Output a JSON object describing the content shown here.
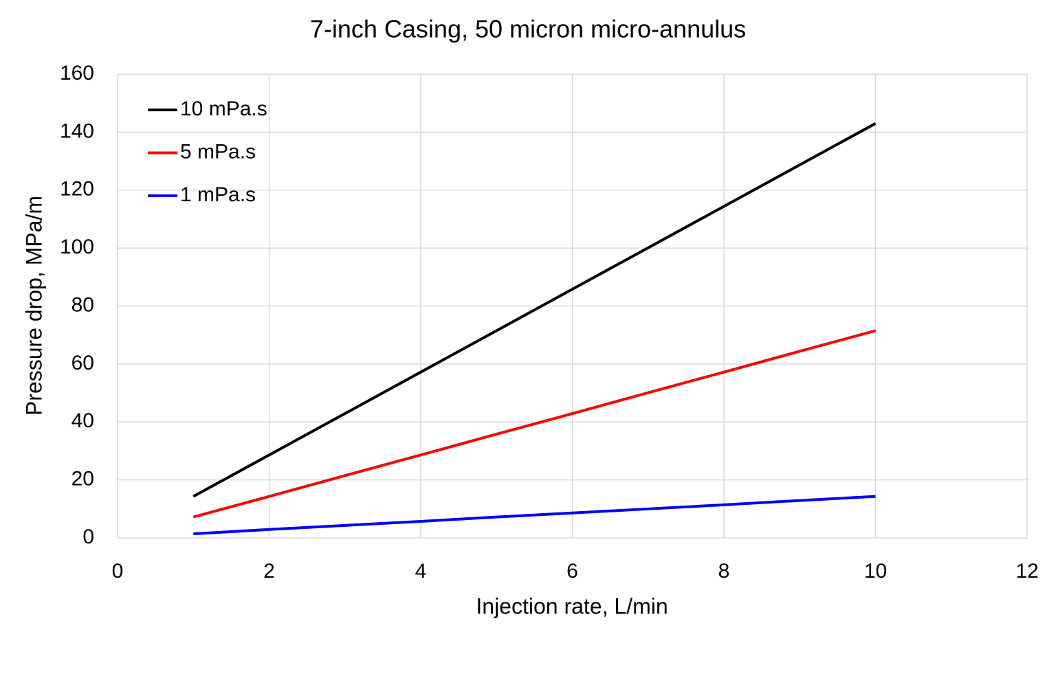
{
  "chart_data": {
    "type": "line",
    "title": "7-inch Casing, 50 micron micro-annulus",
    "x_label": "Injection rate, L/min",
    "y_label": "Pressure drop, MPa/m",
    "x": [
      1,
      2,
      3,
      4,
      5,
      6,
      7,
      8,
      9,
      10
    ],
    "series": [
      {
        "name": "10 mPa.s",
        "color": "#000000",
        "values": [
          14.3,
          28.6,
          42.9,
          57.2,
          71.5,
          85.8,
          100.1,
          114.4,
          128.7,
          143
        ]
      },
      {
        "name": "5 mPa.s",
        "color": "#ff0000",
        "values": [
          7.2,
          14.3,
          21.5,
          28.6,
          35.8,
          42.9,
          50.1,
          57.2,
          64.4,
          71.5
        ]
      },
      {
        "name": "1 mPa.s",
        "color": "#0000ff",
        "values": [
          1.4,
          2.9,
          4.3,
          5.7,
          7.2,
          8.6,
          10,
          11.4,
          12.9,
          14.3
        ]
      }
    ],
    "xlim": [
      0,
      12
    ],
    "xticks": [
      0,
      2,
      4,
      6,
      8,
      10,
      12
    ],
    "ylim": [
      0,
      160
    ],
    "yticks": [
      0,
      20,
      40,
      60,
      80,
      100,
      120,
      140,
      160
    ],
    "grid": true,
    "legend_position": "upper left"
  }
}
